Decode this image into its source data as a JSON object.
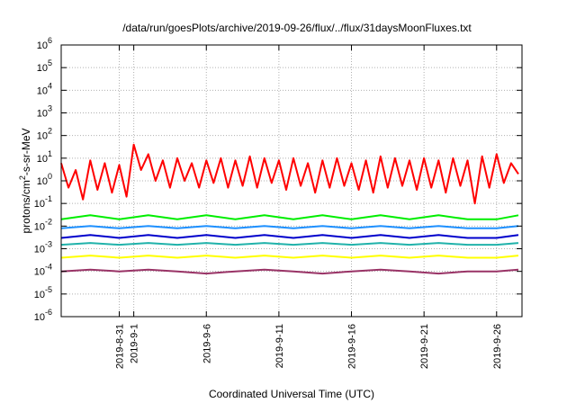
{
  "chart_data": {
    "type": "line",
    "title": "/data/run/goesPlots/archive/2019-09-26/flux/../flux/31daysMoonFluxes.txt",
    "xlabel": "Coordinated Universal Time (UTC)",
    "ylabel_parts": [
      "protons/cm",
      "2",
      "-s-sr-MeV"
    ],
    "y_scale": "log",
    "ylim": [
      1e-06,
      1000000.0
    ],
    "xlim": [
      "2019-08-27",
      "2019-09-27 18:00"
    ],
    "grid": true,
    "legend": "none",
    "y_ticks": [
      {
        "base": "10",
        "exp": "-6",
        "value": 1e-06
      },
      {
        "base": "10",
        "exp": "-5",
        "value": 1e-05
      },
      {
        "base": "10",
        "exp": "-4",
        "value": 0.0001
      },
      {
        "base": "10",
        "exp": "-3",
        "value": 0.001
      },
      {
        "base": "10",
        "exp": "-2",
        "value": 0.01
      },
      {
        "base": "10",
        "exp": "-1",
        "value": 0.1
      },
      {
        "base": "10",
        "exp": "0",
        "value": 1
      },
      {
        "base": "10",
        "exp": "1",
        "value": 10
      },
      {
        "base": "10",
        "exp": "2",
        "value": 100
      },
      {
        "base": "10",
        "exp": "3",
        "value": 1000
      },
      {
        "base": "10",
        "exp": "4",
        "value": 10000
      },
      {
        "base": "10",
        "exp": "5",
        "value": 100000
      },
      {
        "base": "10",
        "exp": "6",
        "value": 1000000
      }
    ],
    "x_ticks": [
      {
        "date": "2019-08-31",
        "label": "2019-8-31"
      },
      {
        "date": "2019-09-01",
        "label": "2019-9-1"
      },
      {
        "date": "2019-09-06",
        "label": "2019-9-6"
      },
      {
        "date": "2019-09-11",
        "label": "2019-9-11"
      },
      {
        "date": "2019-09-16",
        "label": "2019-9-16"
      },
      {
        "date": "2019-09-21",
        "label": "2019-9-21"
      },
      {
        "date": "2019-09-26",
        "label": "2019-9-26"
      }
    ],
    "series": [
      {
        "color": "#ff0000",
        "x": [
          "2019-08-27",
          "2019-08-27 12:00",
          "2019-08-28",
          "2019-08-28 12:00",
          "2019-08-29",
          "2019-08-29 12:00",
          "2019-08-30",
          "2019-08-30 12:00",
          "2019-08-31",
          "2019-08-31 12:00",
          "2019-09-01",
          "2019-09-01 12:00",
          "2019-09-02",
          "2019-09-02 12:00",
          "2019-09-03",
          "2019-09-03 12:00",
          "2019-09-04",
          "2019-09-04 12:00",
          "2019-09-05",
          "2019-09-05 12:00",
          "2019-09-06",
          "2019-09-06 12:00",
          "2019-09-07",
          "2019-09-07 12:00",
          "2019-09-08",
          "2019-09-08 12:00",
          "2019-09-09",
          "2019-09-09 12:00",
          "2019-09-10",
          "2019-09-10 12:00",
          "2019-09-11",
          "2019-09-11 12:00",
          "2019-09-12",
          "2019-09-12 12:00",
          "2019-09-13",
          "2019-09-13 12:00",
          "2019-09-14",
          "2019-09-14 12:00",
          "2019-09-15",
          "2019-09-15 12:00",
          "2019-09-16",
          "2019-09-16 12:00",
          "2019-09-17",
          "2019-09-17 12:00",
          "2019-09-18",
          "2019-09-18 12:00",
          "2019-09-19",
          "2019-09-19 12:00",
          "2019-09-20",
          "2019-09-20 12:00",
          "2019-09-21",
          "2019-09-21 12:00",
          "2019-09-22",
          "2019-09-22 12:00",
          "2019-09-23",
          "2019-09-23 12:00",
          "2019-09-24",
          "2019-09-24 12:00",
          "2019-09-25",
          "2019-09-25 12:00",
          "2019-09-26",
          "2019-09-26 12:00",
          "2019-09-27",
          "2019-09-27 12:00"
        ],
        "y": [
          6,
          0.5,
          3,
          0.15,
          8,
          0.4,
          6,
          0.3,
          5,
          0.2,
          40,
          3,
          15,
          1,
          8,
          0.5,
          10,
          1,
          6,
          0.5,
          8,
          0.8,
          10,
          0.5,
          8,
          0.6,
          12,
          0.5,
          10,
          0.8,
          8,
          0.4,
          10,
          0.6,
          6,
          0.3,
          8,
          0.5,
          10,
          0.6,
          6,
          0.4,
          8,
          0.3,
          12,
          0.5,
          10,
          0.6,
          8,
          0.4,
          10,
          0.5,
          8,
          0.3,
          10,
          0.6,
          8,
          0.1,
          12,
          0.5,
          15,
          0.8,
          6,
          2
        ]
      },
      {
        "color": "#00ee00",
        "x": [
          "2019-08-27",
          "2019-08-29",
          "2019-08-31",
          "2019-09-02",
          "2019-09-04",
          "2019-09-06",
          "2019-09-08",
          "2019-09-10",
          "2019-09-12",
          "2019-09-14",
          "2019-09-16",
          "2019-09-18",
          "2019-09-20",
          "2019-09-22",
          "2019-09-24",
          "2019-09-26",
          "2019-09-27 12:00"
        ],
        "y": [
          0.02,
          0.03,
          0.02,
          0.03,
          0.02,
          0.03,
          0.02,
          0.03,
          0.02,
          0.03,
          0.02,
          0.03,
          0.02,
          0.03,
          0.02,
          0.02,
          0.03
        ]
      },
      {
        "color": "#1e90ff",
        "x": [
          "2019-08-27",
          "2019-08-29",
          "2019-08-31",
          "2019-09-02",
          "2019-09-04",
          "2019-09-06",
          "2019-09-08",
          "2019-09-10",
          "2019-09-12",
          "2019-09-14",
          "2019-09-16",
          "2019-09-18",
          "2019-09-20",
          "2019-09-22",
          "2019-09-24",
          "2019-09-26",
          "2019-09-27 12:00"
        ],
        "y": [
          0.008,
          0.01,
          0.008,
          0.01,
          0.008,
          0.01,
          0.008,
          0.01,
          0.008,
          0.01,
          0.008,
          0.01,
          0.008,
          0.01,
          0.008,
          0.008,
          0.01
        ]
      },
      {
        "color": "#0000cc",
        "x": [
          "2019-08-27",
          "2019-08-29",
          "2019-08-31",
          "2019-09-02",
          "2019-09-04",
          "2019-09-06",
          "2019-09-08",
          "2019-09-10",
          "2019-09-12",
          "2019-09-14",
          "2019-09-16",
          "2019-09-18",
          "2019-09-20",
          "2019-09-22",
          "2019-09-24",
          "2019-09-26",
          "2019-09-27 12:00"
        ],
        "y": [
          0.003,
          0.004,
          0.003,
          0.004,
          0.003,
          0.004,
          0.003,
          0.004,
          0.003,
          0.004,
          0.003,
          0.004,
          0.003,
          0.004,
          0.003,
          0.003,
          0.004
        ]
      },
      {
        "color": "#20b2aa",
        "x": [
          "2019-08-27",
          "2019-08-29",
          "2019-08-31",
          "2019-09-02",
          "2019-09-04",
          "2019-09-06",
          "2019-09-08",
          "2019-09-10",
          "2019-09-12",
          "2019-09-14",
          "2019-09-16",
          "2019-09-18",
          "2019-09-20",
          "2019-09-22",
          "2019-09-24",
          "2019-09-26",
          "2019-09-27 12:00"
        ],
        "y": [
          0.0015,
          0.0018,
          0.0015,
          0.0018,
          0.0015,
          0.0018,
          0.0015,
          0.0018,
          0.0015,
          0.0018,
          0.0015,
          0.0018,
          0.0015,
          0.0018,
          0.0015,
          0.0015,
          0.0018
        ]
      },
      {
        "color": "#ffff00",
        "x": [
          "2019-08-27",
          "2019-08-29",
          "2019-08-31",
          "2019-09-02",
          "2019-09-04",
          "2019-09-06",
          "2019-09-08",
          "2019-09-10",
          "2019-09-12",
          "2019-09-14",
          "2019-09-16",
          "2019-09-18",
          "2019-09-20",
          "2019-09-22",
          "2019-09-24",
          "2019-09-26",
          "2019-09-27 12:00"
        ],
        "y": [
          0.0004,
          0.0005,
          0.0004,
          0.0005,
          0.0004,
          0.0005,
          0.0004,
          0.0005,
          0.0004,
          0.0005,
          0.0004,
          0.0005,
          0.0004,
          0.0005,
          0.0004,
          0.0004,
          0.0005
        ]
      },
      {
        "color": "#993366",
        "x": [
          "2019-08-27",
          "2019-08-29",
          "2019-08-31",
          "2019-09-02",
          "2019-09-04",
          "2019-09-06",
          "2019-09-08",
          "2019-09-10",
          "2019-09-12",
          "2019-09-14",
          "2019-09-16",
          "2019-09-18",
          "2019-09-20",
          "2019-09-22",
          "2019-09-24",
          "2019-09-26",
          "2019-09-27 12:00"
        ],
        "y": [
          0.0001,
          0.00012,
          0.0001,
          0.00012,
          0.0001,
          8e-05,
          0.0001,
          0.00012,
          0.0001,
          8e-05,
          0.0001,
          0.00012,
          0.0001,
          8e-05,
          0.0001,
          0.0001,
          0.00012
        ]
      }
    ]
  }
}
